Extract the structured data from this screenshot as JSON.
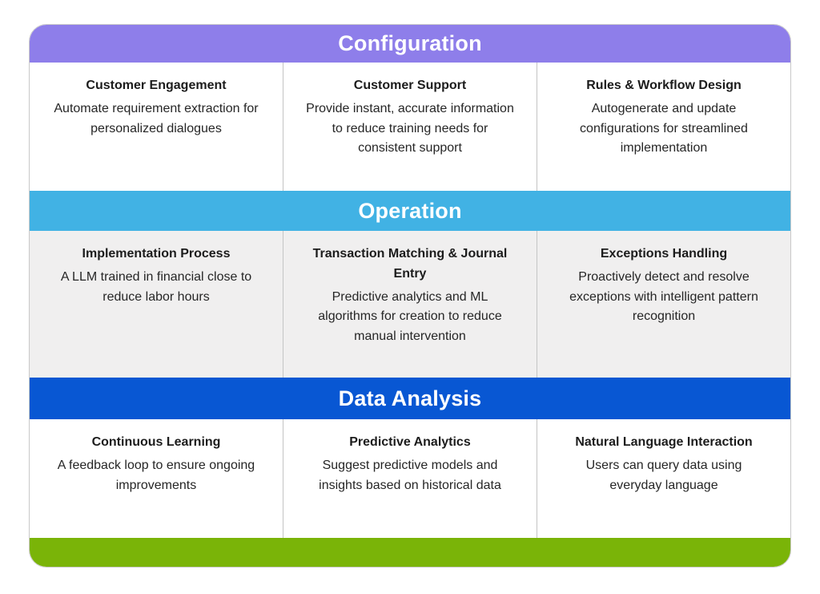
{
  "colors": {
    "configuration": "#8e7eea",
    "operation": "#41b2e4",
    "data_analysis": "#0857d3",
    "footer_green": "#7ab408",
    "body_gray": "#f0efef",
    "divider": "#c4c4c4",
    "border": "#c9c9c9"
  },
  "sections": [
    {
      "title": "Configuration",
      "band_color": "#8e7eea",
      "cells": [
        {
          "title": "Customer Engagement",
          "desc": "Automate requirement extraction for personalized dialogues"
        },
        {
          "title": "Customer Support",
          "desc": "Provide instant, accurate information to reduce training needs for consistent support"
        },
        {
          "title": "Rules & Workflow Design",
          "desc": "Autogenerate and update configurations for streamlined implementation"
        }
      ]
    },
    {
      "title": "Operation",
      "band_color": "#41b2e4",
      "cells": [
        {
          "title": "Implementation Process",
          "desc": "A LLM trained in financial close to reduce labor hours"
        },
        {
          "title": "Transaction Matching & Journal Entry",
          "desc": "Predictive analytics and ML algorithms for creation to reduce manual intervention"
        },
        {
          "title": "Exceptions Handling",
          "desc": "Proactively detect and resolve exceptions with intelligent pattern recognition"
        }
      ]
    },
    {
      "title": "Data Analysis",
      "band_color": "#0857d3",
      "cells": [
        {
          "title": "Continuous Learning",
          "desc": "A feedback loop to ensure ongoing improvements"
        },
        {
          "title": "Predictive Analytics",
          "desc": "Suggest predictive models and insights based on historical data"
        },
        {
          "title": "Natural Language Interaction",
          "desc": "Users can query data using everyday language"
        }
      ]
    }
  ],
  "footer": {
    "band_color": "#7ab408"
  }
}
